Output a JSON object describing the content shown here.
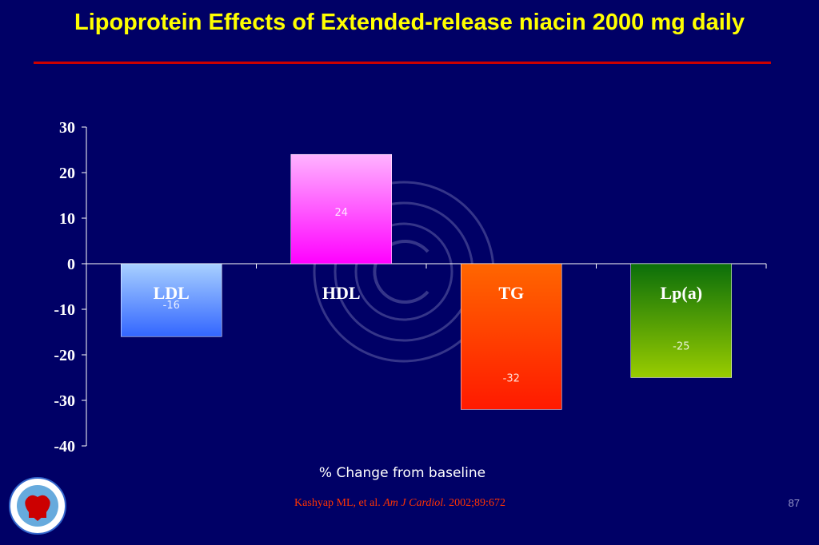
{
  "slide": {
    "title": "Lipoprotein Effects of Extended-release niacin 2000 mg daily",
    "page_number": "87",
    "citation": {
      "authors": "Kashyap ML, et al.",
      "journal": "Am J Cardiol.",
      "details": "2002;89:672"
    },
    "colors": {
      "background": "#000066",
      "title": "#ffff00",
      "rule": "#cc0000",
      "citation": "#ff3300"
    },
    "logo_icon": "cadi-research-foundation-logo",
    "watermark_icon": "copyright-watermark-icon"
  },
  "chart_data": {
    "type": "bar",
    "categories": [
      "LDL",
      "HDL",
      "TG",
      "Lp(a)"
    ],
    "values": [
      -16,
      24,
      -32,
      -25
    ],
    "data_labels": [
      "-16",
      "24",
      "-32",
      "-25"
    ],
    "xlabel": "% Change from baseline",
    "ylabel": "",
    "ylim": [
      -40,
      30
    ],
    "yticks": [
      30,
      20,
      10,
      0,
      -10,
      -20,
      -30,
      -40
    ],
    "grid": false,
    "legend": "none",
    "bar_colors": [
      [
        "#a8d0ff",
        "#3366ff"
      ],
      [
        "#ffb3ff",
        "#ff00ff"
      ],
      [
        "#ff6600",
        "#ff1a00"
      ],
      [
        "#0a6e0a",
        "#99cc00"
      ]
    ]
  }
}
